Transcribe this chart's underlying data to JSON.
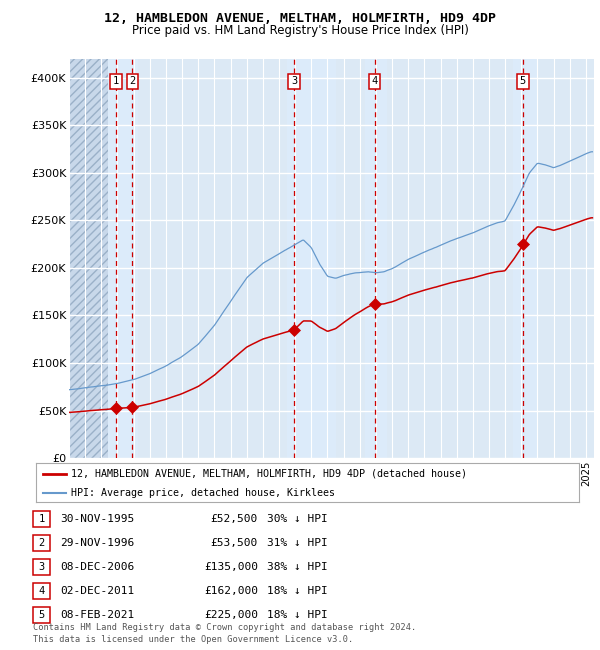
{
  "title": "12, HAMBLEDON AVENUE, MELTHAM, HOLMFIRTH, HD9 4DP",
  "subtitle": "Price paid vs. HM Land Registry's House Price Index (HPI)",
  "ylim": [
    0,
    420000
  ],
  "yticks": [
    0,
    50000,
    100000,
    150000,
    200000,
    250000,
    300000,
    350000,
    400000
  ],
  "ytick_labels": [
    "£0",
    "£50K",
    "£100K",
    "£150K",
    "£200K",
    "£250K",
    "£300K",
    "£350K",
    "£400K"
  ],
  "xlim_start": 1993.0,
  "xlim_end": 2025.5,
  "bg_color": "#dce9f5",
  "grid_color": "#ffffff",
  "sale_dates": [
    1995.917,
    1996.917,
    2006.933,
    2011.917,
    2021.1
  ],
  "sale_prices": [
    52500,
    53500,
    135000,
    162000,
    225000
  ],
  "sale_labels": [
    "1",
    "2",
    "3",
    "4",
    "5"
  ],
  "vline_color": "#cc0000",
  "sale_dot_color": "#cc0000",
  "legend_red_label": "12, HAMBLEDON AVENUE, MELTHAM, HOLMFIRTH, HD9 4DP (detached house)",
  "legend_blue_label": "HPI: Average price, detached house, Kirklees",
  "table_rows": [
    [
      "1",
      "30-NOV-1995",
      "£52,500",
      "30% ↓ HPI"
    ],
    [
      "2",
      "29-NOV-1996",
      "£53,500",
      "31% ↓ HPI"
    ],
    [
      "3",
      "08-DEC-2006",
      "£135,000",
      "38% ↓ HPI"
    ],
    [
      "4",
      "02-DEC-2011",
      "£162,000",
      "18% ↓ HPI"
    ],
    [
      "5",
      "08-FEB-2021",
      "£225,000",
      "18% ↓ HPI"
    ]
  ],
  "footer": "Contains HM Land Registry data © Crown copyright and database right 2024.\nThis data is licensed under the Open Government Licence v3.0.",
  "red_line_color": "#cc0000",
  "blue_line_color": "#6699cc",
  "hpi_control_years": [
    1993.0,
    1994.0,
    1995.0,
    1996.0,
    1997.0,
    1998.0,
    1999.0,
    2000.0,
    2001.0,
    2002.0,
    2003.0,
    2004.0,
    2005.0,
    2006.0,
    2007.0,
    2007.5,
    2008.0,
    2008.5,
    2009.0,
    2009.5,
    2010.0,
    2010.5,
    2011.0,
    2011.5,
    2012.0,
    2012.5,
    2013.0,
    2013.5,
    2014.0,
    2015.0,
    2016.0,
    2017.0,
    2018.0,
    2019.0,
    2019.5,
    2020.0,
    2020.5,
    2021.0,
    2021.5,
    2022.0,
    2022.5,
    2023.0,
    2023.5,
    2024.0,
    2024.5,
    2025.0,
    2025.3
  ],
  "hpi_control_values": [
    72000,
    74000,
    76000,
    79000,
    83000,
    89000,
    97000,
    107000,
    120000,
    140000,
    165000,
    190000,
    205000,
    215000,
    225000,
    230000,
    222000,
    205000,
    192000,
    190000,
    193000,
    195000,
    196000,
    197000,
    196000,
    197000,
    200000,
    205000,
    210000,
    218000,
    225000,
    232000,
    238000,
    245000,
    248000,
    250000,
    265000,
    282000,
    300000,
    310000,
    308000,
    305000,
    308000,
    312000,
    316000,
    320000,
    322000
  ]
}
